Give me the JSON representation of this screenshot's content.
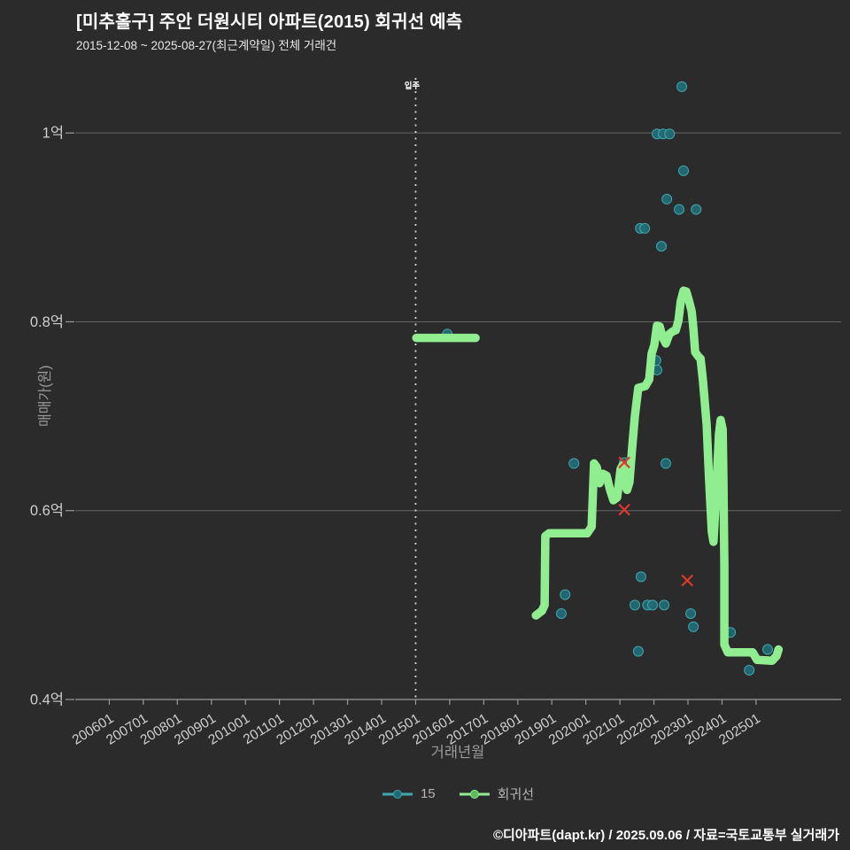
{
  "page": {
    "background": "#2b2b2b"
  },
  "chart_data": {
    "type": "line+scatter",
    "title": "[미추홀구] 주안 더원시티 아파트(2015) 회귀선 예측",
    "subtitle": "2015-12-08 ~ 2025-08-27(최근계약일) 전체 거래건",
    "xlabel": "거래년월",
    "ylabel": "매매가(원)",
    "footer": "©디아파트(dapt.kr) / 2025.09.06 / 자료=국토교통부 실거래가",
    "xlim": [
      2005.0,
      2027.5
    ],
    "ylim": [
      0.4,
      1.0583
    ],
    "grid": "horizontal",
    "x_tick_labels": [
      "200601",
      "200701",
      "200801",
      "200901",
      "201001",
      "201101",
      "201201",
      "201301",
      "201401",
      "201501",
      "201601",
      "201701",
      "201801",
      "201901",
      "202001",
      "202101",
      "202201",
      "202301",
      "202401",
      "202501"
    ],
    "y_ticks": [
      {
        "label": "1억",
        "value": 1.0
      },
      {
        "label": "0.8억",
        "value": 0.8
      },
      {
        "label": "0.6억",
        "value": 0.6
      },
      {
        "label": "0.4억",
        "value": 0.4
      }
    ],
    "annotation": {
      "label": "입주",
      "x": 2015.0
    },
    "colors": {
      "scatter_fill": "#226d76",
      "scatter_edge": "#3fa7b0",
      "regression": "#90ee90",
      "outlier": "#e0382d",
      "gridline": "#666666",
      "axis_line": "#9a9a9a",
      "tick_label": "#cfcfcf",
      "annotation_line": "#d8d8d8"
    },
    "series": [
      {
        "name": "15",
        "type": "scatter",
        "points": [
          [
            2015.93,
            0.787
          ],
          [
            2019.28,
            0.491
          ],
          [
            2019.39,
            0.511
          ],
          [
            2019.65,
            0.65
          ],
          [
            2021.13,
            0.651
          ],
          [
            2021.44,
            0.5
          ],
          [
            2021.54,
            0.451
          ],
          [
            2021.6,
            0.899
          ],
          [
            2021.62,
            0.53
          ],
          [
            2021.73,
            0.899
          ],
          [
            2021.81,
            0.5
          ],
          [
            2021.96,
            0.5
          ],
          [
            2022.06,
            0.759
          ],
          [
            2022.09,
            0.749
          ],
          [
            2022.09,
            0.999
          ],
          [
            2022.22,
            0.88
          ],
          [
            2022.27,
            0.999
          ],
          [
            2022.3,
            0.5
          ],
          [
            2022.35,
            0.65
          ],
          [
            2022.38,
            0.93
          ],
          [
            2022.46,
            0.999
          ],
          [
            2022.74,
            0.919
          ],
          [
            2022.82,
            1.049
          ],
          [
            2022.87,
            0.96
          ],
          [
            2023.08,
            0.491
          ],
          [
            2023.16,
            0.477
          ],
          [
            2023.24,
            0.919
          ],
          [
            2024.25,
            0.471
          ],
          [
            2024.8,
            0.431
          ],
          [
            2025.34,
            0.453
          ]
        ]
      },
      {
        "name": "회귀선",
        "type": "line",
        "width": 9.5,
        "segments": [
          [
            [
              2015.02,
              0.783
            ],
            [
              2016.76,
              0.783
            ]
          ],
          [
            [
              2018.53,
              0.489
            ],
            [
              2018.71,
              0.494
            ],
            [
              2018.79,
              0.5
            ],
            [
              2018.81,
              0.573
            ],
            [
              2018.92,
              0.576
            ],
            [
              2020.04,
              0.576
            ],
            [
              2020.17,
              0.583
            ],
            [
              2020.24,
              0.65
            ],
            [
              2020.32,
              0.646
            ],
            [
              2020.4,
              0.629
            ],
            [
              2020.5,
              0.639
            ],
            [
              2020.61,
              0.637
            ],
            [
              2020.71,
              0.622
            ],
            [
              2020.81,
              0.611
            ],
            [
              2020.92,
              0.614
            ],
            [
              2021.02,
              0.644
            ],
            [
              2021.08,
              0.648
            ],
            [
              2021.15,
              0.627
            ],
            [
              2021.21,
              0.622
            ],
            [
              2021.28,
              0.63
            ],
            [
              2021.36,
              0.667
            ],
            [
              2021.44,
              0.7
            ],
            [
              2021.54,
              0.73
            ],
            [
              2021.75,
              0.732
            ],
            [
              2021.86,
              0.739
            ],
            [
              2021.93,
              0.766
            ],
            [
              2022.01,
              0.775
            ],
            [
              2022.09,
              0.796
            ],
            [
              2022.17,
              0.795
            ],
            [
              2022.25,
              0.784
            ],
            [
              2022.35,
              0.777
            ],
            [
              2022.45,
              0.787
            ],
            [
              2022.56,
              0.79
            ],
            [
              2022.64,
              0.791
            ],
            [
              2022.72,
              0.801
            ],
            [
              2022.79,
              0.822
            ],
            [
              2022.87,
              0.833
            ],
            [
              2022.95,
              0.832
            ],
            [
              2023.03,
              0.822
            ],
            [
              2023.11,
              0.811
            ],
            [
              2023.16,
              0.792
            ],
            [
              2023.21,
              0.768
            ],
            [
              2023.31,
              0.763
            ],
            [
              2023.37,
              0.761
            ],
            [
              2023.44,
              0.738
            ],
            [
              2023.55,
              0.691
            ],
            [
              2023.62,
              0.634
            ],
            [
              2023.7,
              0.578
            ],
            [
              2023.75,
              0.567
            ],
            [
              2023.83,
              0.62
            ],
            [
              2023.91,
              0.681
            ],
            [
              2023.96,
              0.696
            ],
            [
              2024.02,
              0.686
            ],
            [
              2024.04,
              0.634
            ],
            [
              2024.07,
              0.541
            ],
            [
              2024.07,
              0.458
            ],
            [
              2024.17,
              0.45
            ],
            [
              2024.9,
              0.45
            ],
            [
              2025.03,
              0.442
            ],
            [
              2025.47,
              0.441
            ],
            [
              2025.6,
              0.446
            ],
            [
              2025.66,
              0.453
            ]
          ]
        ]
      },
      {
        "name": "outlier-x",
        "type": "x_marker",
        "in_legend": false,
        "points": [
          [
            2021.13,
            0.651
          ],
          [
            2021.13,
            0.601
          ],
          [
            2022.98,
            0.526
          ]
        ]
      }
    ],
    "legend": {
      "position": "bottom-center",
      "items": [
        {
          "label": "15",
          "line": "#3fa7b0",
          "dot": "#1f6b74"
        },
        {
          "label": "회귀선",
          "line": "#90ee90",
          "dot": "#5db75d"
        }
      ]
    }
  }
}
